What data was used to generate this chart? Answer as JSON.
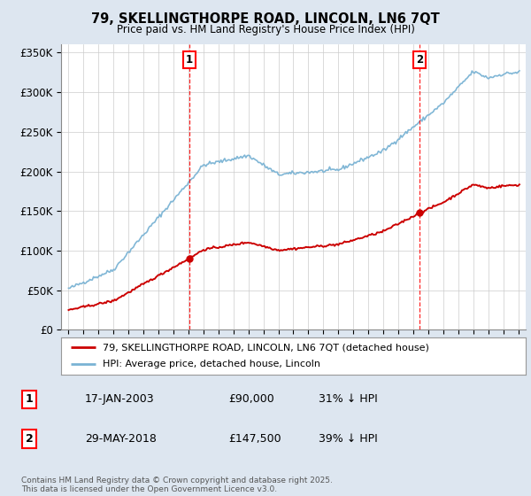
{
  "title": "79, SKELLINGTHORPE ROAD, LINCOLN, LN6 7QT",
  "subtitle": "Price paid vs. HM Land Registry's House Price Index (HPI)",
  "ylim": [
    0,
    360000
  ],
  "yticks": [
    0,
    50000,
    100000,
    150000,
    200000,
    250000,
    300000,
    350000
  ],
  "xlim": [
    1994.5,
    2025.5
  ],
  "background_color": "#dde6f0",
  "plot_background": "#ffffff",
  "grid_color": "#cccccc",
  "hpi_color": "#7ab3d4",
  "price_color": "#cc0000",
  "purchase1_x": 2003.04,
  "purchase1_y": 90000,
  "purchase2_x": 2018.41,
  "purchase2_y": 147500,
  "legend_line1": "79, SKELLINGTHORPE ROAD, LINCOLN, LN6 7QT (detached house)",
  "legend_line2": "HPI: Average price, detached house, Lincoln",
  "footnote": "Contains HM Land Registry data © Crown copyright and database right 2025.\nThis data is licensed under the Open Government Licence v3.0.",
  "table_rows": [
    {
      "num": "1",
      "date": "17-JAN-2003",
      "price": "£90,000",
      "pct": "31% ↓ HPI"
    },
    {
      "num": "2",
      "date": "29-MAY-2018",
      "price": "£147,500",
      "pct": "39% ↓ HPI"
    }
  ]
}
